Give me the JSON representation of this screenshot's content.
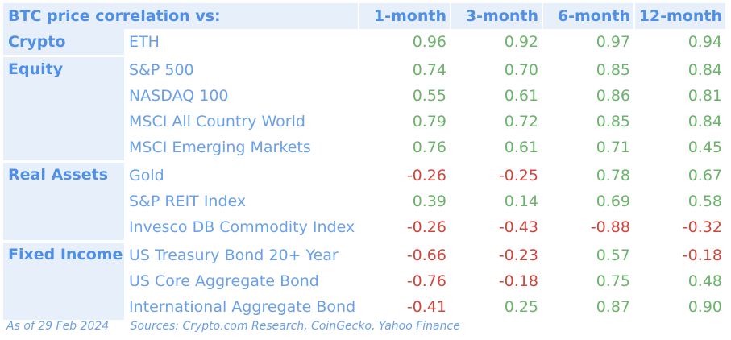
{
  "header": {
    "title": "BTC price correlation vs:",
    "columns": [
      "1-month",
      "3-month",
      "6-month",
      "12-month"
    ]
  },
  "groups": [
    {
      "category": "Crypto",
      "rows": [
        {
          "name": "ETH",
          "values": [
            "0.96",
            "0.92",
            "0.97",
            "0.94"
          ]
        }
      ]
    },
    {
      "category": "Equity",
      "rows": [
        {
          "name": "S&P 500",
          "values": [
            "0.74",
            "0.70",
            "0.85",
            "0.84"
          ]
        },
        {
          "name": "NASDAQ 100",
          "values": [
            "0.55",
            "0.61",
            "0.86",
            "0.81"
          ]
        },
        {
          "name": "MSCI All Country World",
          "values": [
            "0.79",
            "0.72",
            "0.85",
            "0.84"
          ]
        },
        {
          "name": "MSCI Emerging Markets",
          "values": [
            "0.76",
            "0.61",
            "0.71",
            "0.45"
          ]
        }
      ]
    },
    {
      "category": "Real Assets",
      "rows": [
        {
          "name": "Gold",
          "values": [
            "-0.26",
            "-0.25",
            "0.78",
            "0.67"
          ]
        },
        {
          "name": "S&P REIT Index",
          "values": [
            "0.39",
            "0.14",
            "0.69",
            "0.58"
          ]
        },
        {
          "name": "Invesco DB Commodity Index",
          "values": [
            "-0.26",
            "-0.43",
            "-0.88",
            "-0.32"
          ]
        }
      ]
    },
    {
      "category": "Fixed Income",
      "rows": [
        {
          "name": "US Treasury Bond 20+ Year",
          "values": [
            "-0.66",
            "-0.23",
            "0.57",
            "-0.18"
          ]
        },
        {
          "name": "US Core Aggregate Bond",
          "values": [
            "-0.76",
            "-0.18",
            "0.75",
            "0.48"
          ]
        },
        {
          "name": "International Aggregate Bond",
          "values": [
            "-0.41",
            "0.25",
            "0.87",
            "0.90"
          ]
        }
      ]
    }
  ],
  "footer": {
    "date": "As of 29 Feb 2024",
    "sources": "Sources: Crypto.com Research, CoinGecko, Yahoo Finance"
  },
  "colors": {
    "header_bg": "#e7effb",
    "accent_blue": "#4f8fe6",
    "positive": "#6cb36c",
    "negative": "#d0463c"
  }
}
